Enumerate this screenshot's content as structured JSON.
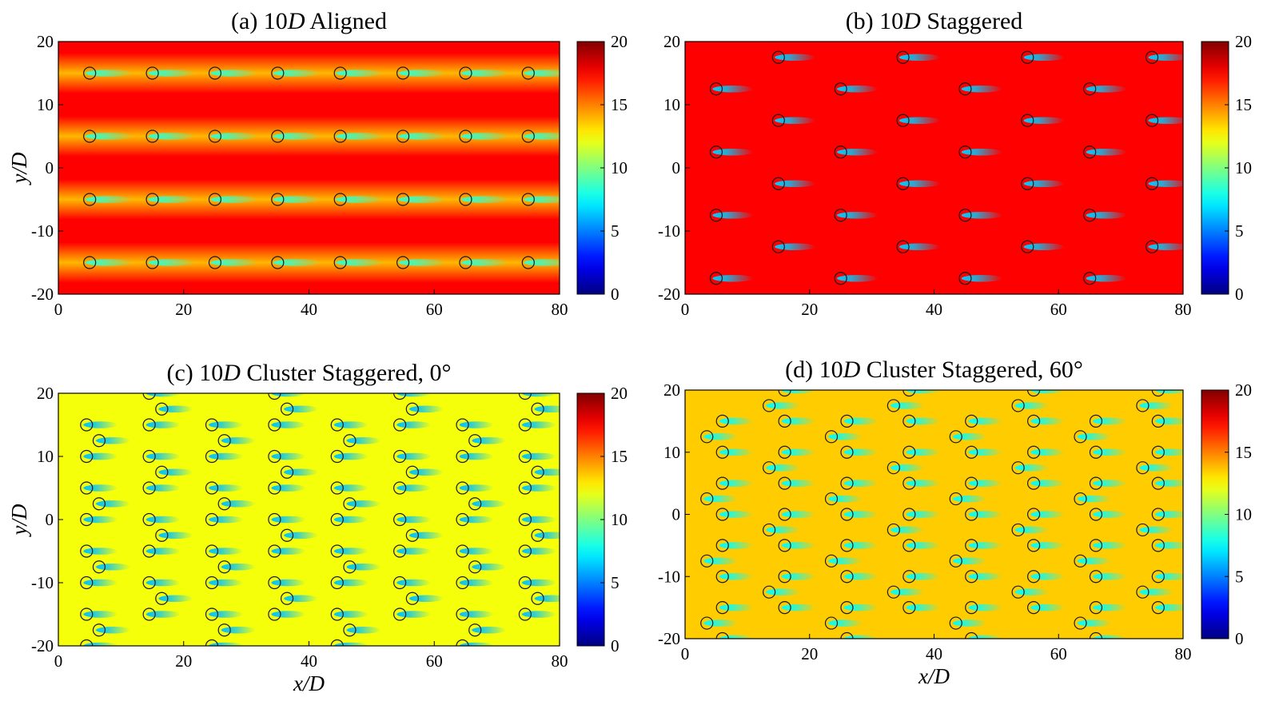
{
  "chart_data": [
    {
      "type": "heatmap",
      "title": "(a) 10D Aligned",
      "title_prefix": "(a) 10",
      "title_italic": "D",
      "title_suffix": " Aligned",
      "xlabel": "",
      "ylabel": "y/D",
      "xlim": [
        0,
        80
      ],
      "ylim": [
        -20,
        20
      ],
      "xticks": [
        "0",
        "20",
        "40",
        "60",
        "80"
      ],
      "yticks": [
        "20",
        "10",
        "0",
        "-10",
        "-20"
      ],
      "colorbar": {
        "ticks": [
          "20",
          "15",
          "10",
          "5",
          "0"
        ],
        "range": [
          0,
          20
        ],
        "colormap": "jet"
      },
      "background_level": 17.5,
      "wake_deficit": 9,
      "wake_length": 7,
      "row_wake_deficit": 4,
      "turbines": {
        "x": [
          5,
          15,
          25,
          35,
          45,
          55,
          65,
          75
        ],
        "y": [
          15,
          5,
          -5,
          -15
        ]
      }
    },
    {
      "type": "heatmap",
      "title": "(b) 10D Staggered",
      "title_prefix": "(b) 10",
      "title_italic": "D",
      "title_suffix": " Staggered",
      "xlabel": "",
      "ylabel": "",
      "xlim": [
        0,
        80
      ],
      "ylim": [
        -20,
        20
      ],
      "xticks": [
        "0",
        "20",
        "40",
        "60",
        "80"
      ],
      "yticks": [
        "20",
        "10",
        "0",
        "-10",
        "-20"
      ],
      "colorbar": {
        "ticks": [
          "20",
          "15",
          "10",
          "5",
          "0"
        ],
        "range": [
          0,
          20
        ],
        "colormap": "jet"
      },
      "background_level": 17.5,
      "wake_deficit": 11,
      "wake_length": 6,
      "row_wake_deficit": 0,
      "turbines": {
        "columns": [
          {
            "x": 5,
            "y": [
              12.5,
              2.5,
              -7.5,
              -17.5
            ]
          },
          {
            "x": 15,
            "y": [
              17.5,
              7.5,
              -2.5,
              -12.5
            ]
          },
          {
            "x": 25,
            "y": [
              12.5,
              2.5,
              -7.5,
              -17.5
            ]
          },
          {
            "x": 35,
            "y": [
              17.5,
              7.5,
              -2.5,
              -12.5
            ]
          },
          {
            "x": 45,
            "y": [
              12.5,
              2.5,
              -7.5,
              -17.5
            ]
          },
          {
            "x": 55,
            "y": [
              17.5,
              7.5,
              -2.5,
              -12.5
            ]
          },
          {
            "x": 65,
            "y": [
              12.5,
              2.5,
              -7.5,
              -17.5
            ]
          },
          {
            "x": 75,
            "y": [
              17.5,
              7.5,
              -2.5,
              -12.5
            ]
          }
        ]
      }
    },
    {
      "type": "heatmap",
      "title": "(c) 10D Cluster Staggered, 0°",
      "title_prefix": "(c) 10",
      "title_italic": "D",
      "title_suffix": " Cluster Staggered, 0°",
      "xlabel": "x/D",
      "ylabel": "y/D",
      "xlim": [
        0,
        80
      ],
      "ylim": [
        -20,
        20
      ],
      "xticks": [
        "0",
        "20",
        "40",
        "60",
        "80"
      ],
      "yticks": [
        "20",
        "10",
        "0",
        "-10",
        "-20"
      ],
      "colorbar": {
        "ticks": [
          "20",
          "15",
          "10",
          "5",
          "0"
        ],
        "range": [
          0,
          20
        ],
        "colormap": "jet"
      },
      "background_level": 12.3,
      "wake_deficit": 6,
      "wake_length": 5,
      "row_wake_deficit": 0,
      "turbines": {
        "columns": [
          {
            "x": 4.5,
            "y": [
              15,
              10,
              5,
              0,
              -5,
              -10,
              -15,
              -20
            ]
          },
          {
            "x": 6.5,
            "y": [
              12.5,
              2.5,
              -7.5,
              -17.5
            ]
          },
          {
            "x": 14.5,
            "y": [
              20,
              15,
              10,
              5,
              0,
              -5,
              -10,
              -15
            ]
          },
          {
            "x": 16.5,
            "y": [
              17.5,
              7.5,
              -2.5,
              -12.5
            ]
          },
          {
            "x": 24.5,
            "y": [
              15,
              10,
              5,
              0,
              -5,
              -10,
              -15,
              -20
            ]
          },
          {
            "x": 26.5,
            "y": [
              12.5,
              2.5,
              -7.5,
              -17.5
            ]
          },
          {
            "x": 34.5,
            "y": [
              20,
              15,
              10,
              5,
              0,
              -5,
              -10,
              -15
            ]
          },
          {
            "x": 36.5,
            "y": [
              17.5,
              7.5,
              -2.5,
              -12.5
            ]
          },
          {
            "x": 44.5,
            "y": [
              15,
              10,
              5,
              0,
              -5,
              -10,
              -15,
              -20
            ]
          },
          {
            "x": 46.5,
            "y": [
              12.5,
              2.5,
              -7.5,
              -17.5
            ]
          },
          {
            "x": 54.5,
            "y": [
              20,
              15,
              10,
              5,
              0,
              -5,
              -10,
              -15
            ]
          },
          {
            "x": 56.5,
            "y": [
              17.5,
              7.5,
              -2.5,
              -12.5
            ]
          },
          {
            "x": 64.5,
            "y": [
              15,
              10,
              5,
              0,
              -5,
              -10,
              -15,
              -20
            ]
          },
          {
            "x": 66.5,
            "y": [
              12.5,
              2.5,
              -7.5,
              -17.5
            ]
          },
          {
            "x": 74.5,
            "y": [
              20,
              15,
              10,
              5,
              0,
              -5,
              -10,
              -15
            ]
          },
          {
            "x": 76.5,
            "y": [
              17.5,
              7.5,
              -2.5,
              -12.5
            ]
          }
        ]
      }
    },
    {
      "type": "heatmap",
      "title": "(d) 10D Cluster Staggered, 60°",
      "title_prefix": "(d) 10",
      "title_italic": "D",
      "title_suffix": " Cluster Staggered, 60°",
      "xlabel": "x/D",
      "ylabel": "",
      "xlim": [
        0,
        80
      ],
      "ylim": [
        -20,
        20
      ],
      "xticks": [
        "0",
        "20",
        "40",
        "60",
        "80"
      ],
      "yticks": [
        "20",
        "10",
        "0",
        "-10",
        "-20"
      ],
      "colorbar": {
        "ticks": [
          "20",
          "15",
          "10",
          "5",
          "0"
        ],
        "range": [
          0,
          20
        ],
        "colormap": "jet"
      },
      "background_level": 13.5,
      "wake_deficit": 6,
      "wake_length": 5,
      "row_wake_deficit": 0,
      "turbines": {
        "columns": [
          {
            "x": 3.5,
            "y": [
              12.5,
              2.5,
              -7.5,
              -17.5
            ]
          },
          {
            "x": 6,
            "y": [
              15,
              10,
              5,
              0,
              -5,
              -10,
              -15,
              -20
            ]
          },
          {
            "x": 13.5,
            "y": [
              17.5,
              7.5,
              -2.5,
              -12.5
            ]
          },
          {
            "x": 16,
            "y": [
              20,
              15,
              10,
              5,
              0,
              -5,
              -10,
              -15
            ]
          },
          {
            "x": 23.5,
            "y": [
              12.5,
              2.5,
              -7.5,
              -17.5
            ]
          },
          {
            "x": 26,
            "y": [
              15,
              10,
              5,
              0,
              -5,
              -10,
              -15,
              -20
            ]
          },
          {
            "x": 33.5,
            "y": [
              17.5,
              7.5,
              -2.5,
              -12.5
            ]
          },
          {
            "x": 36,
            "y": [
              20,
              15,
              10,
              5,
              0,
              -5,
              -10,
              -15
            ]
          },
          {
            "x": 43.5,
            "y": [
              12.5,
              2.5,
              -7.5,
              -17.5
            ]
          },
          {
            "x": 46,
            "y": [
              15,
              10,
              5,
              0,
              -5,
              -10,
              -15,
              -20
            ]
          },
          {
            "x": 53.5,
            "y": [
              17.5,
              7.5,
              -2.5,
              -12.5
            ]
          },
          {
            "x": 56,
            "y": [
              20,
              15,
              10,
              5,
              0,
              -5,
              -10,
              -15
            ]
          },
          {
            "x": 63.5,
            "y": [
              12.5,
              2.5,
              -7.5,
              -17.5
            ]
          },
          {
            "x": 66,
            "y": [
              15,
              10,
              5,
              0,
              -5,
              -10,
              -15,
              -20
            ]
          },
          {
            "x": 73.5,
            "y": [
              17.5,
              7.5,
              -2.5,
              -12.5
            ]
          },
          {
            "x": 76,
            "y": [
              20,
              15,
              10,
              5,
              0,
              -5,
              -10,
              -15
            ]
          }
        ]
      }
    }
  ]
}
